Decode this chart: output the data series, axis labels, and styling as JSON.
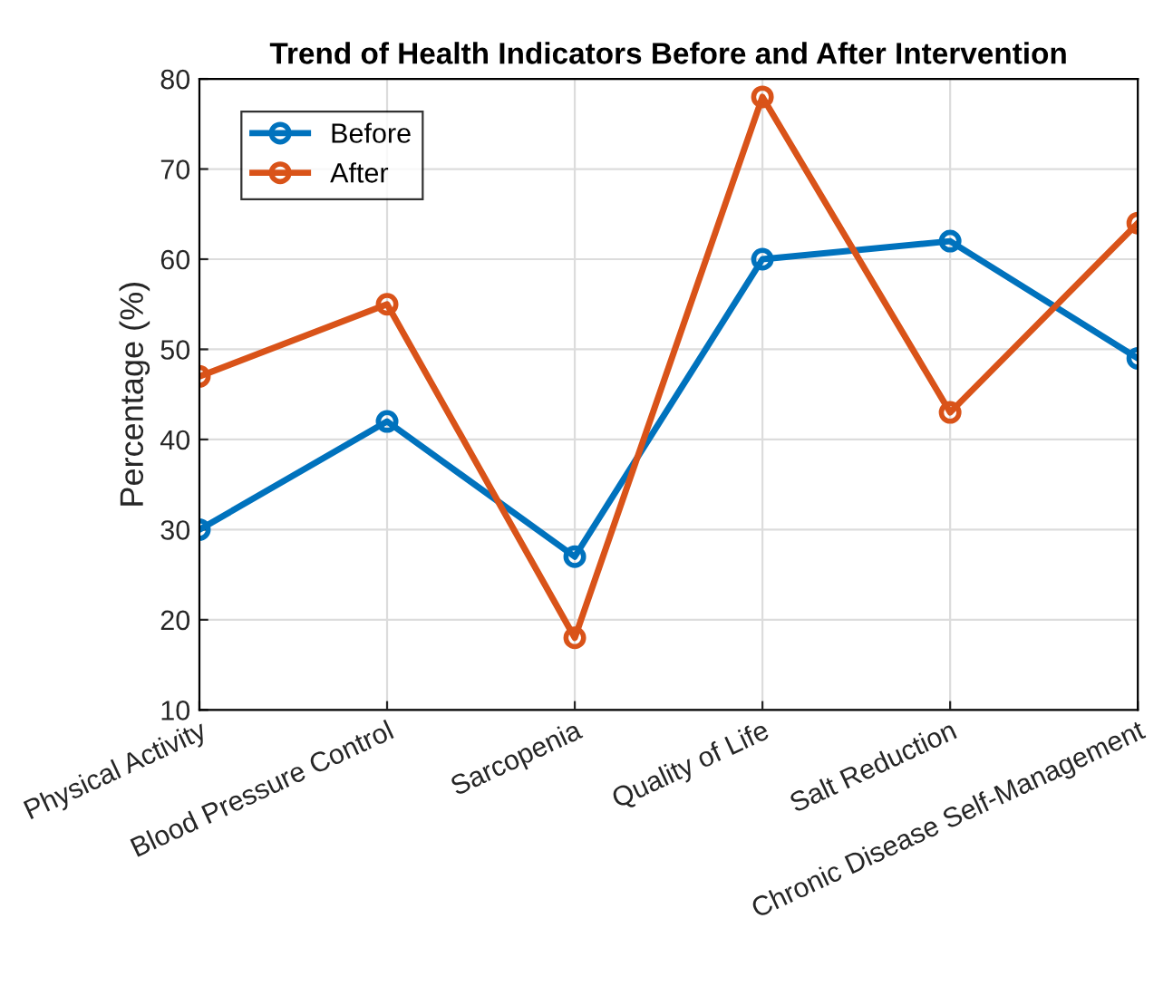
{
  "chart_data": {
    "type": "line",
    "title": "Trend of Health Indicators Before and After Intervention",
    "ylabel": "Percentage (%)",
    "categories": [
      "Physical Activity",
      "Blood Pressure Control",
      "Sarcopenia",
      "Quality of Life",
      "Salt Reduction",
      "Chronic Disease Self-Management"
    ],
    "series": [
      {
        "name": "Before",
        "color": "#0072bd",
        "values": [
          30,
          42,
          27,
          60,
          62,
          49
        ]
      },
      {
        "name": "After",
        "color": "#d95319",
        "values": [
          47,
          55,
          18,
          78,
          43,
          64
        ]
      }
    ],
    "ylim": [
      10,
      80
    ],
    "yticks": [
      10,
      20,
      30,
      40,
      50,
      60,
      70,
      80
    ],
    "grid": true,
    "legend": "top left",
    "marker": "circle",
    "line_style": "solid"
  }
}
